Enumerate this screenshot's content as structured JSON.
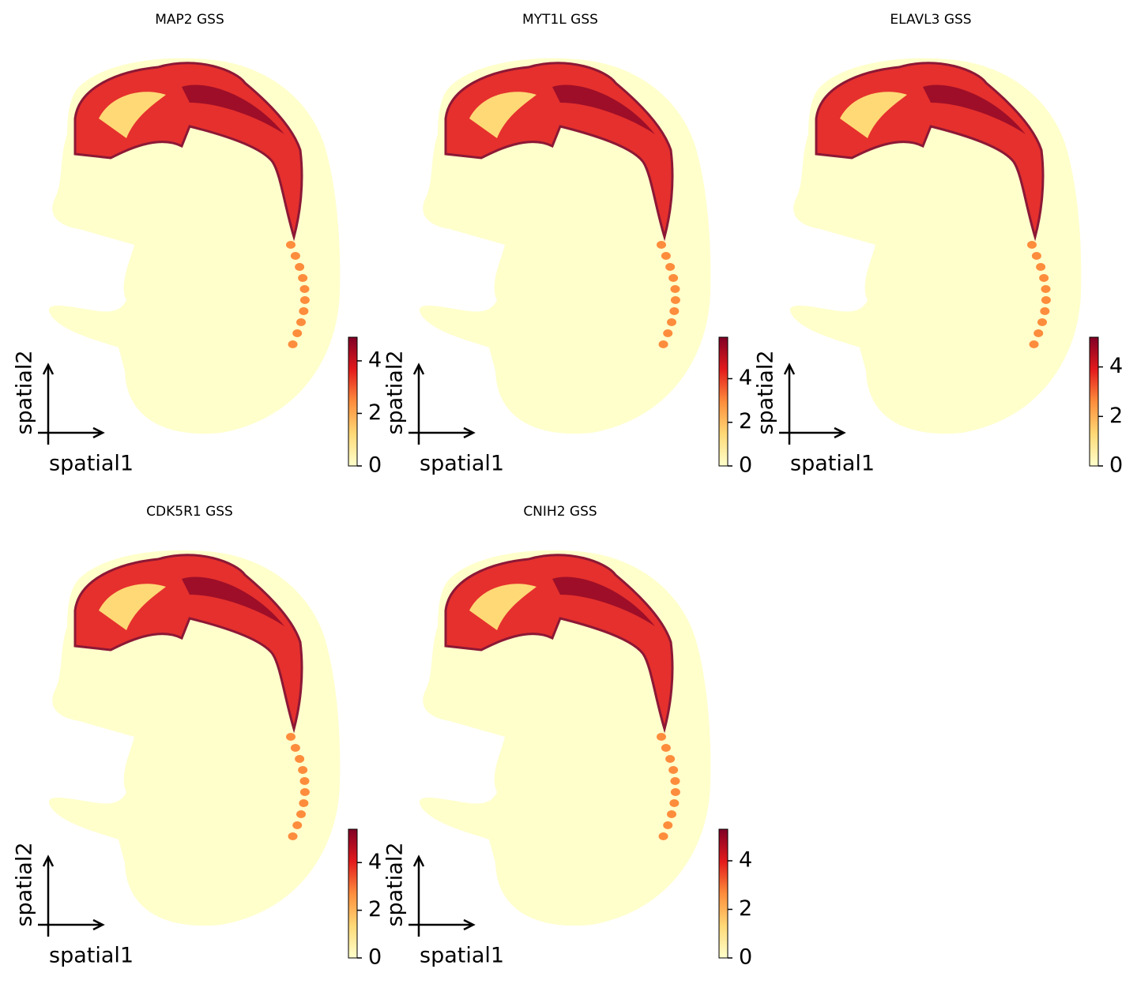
{
  "chart_data": [
    {
      "type": "spatial",
      "title": "MAP2 GSS",
      "xlabel": "spatial1",
      "ylabel": "spatial2",
      "clim": [
        0,
        4.9
      ],
      "cticks": [
        0,
        2,
        4
      ],
      "cmap": [
        "#ffffcc",
        "#fed976",
        "#fd8d3c",
        "#e31a1c",
        "#800026"
      ]
    },
    {
      "type": "spatial",
      "title": "MYT1L GSS",
      "xlabel": "spatial1",
      "ylabel": "spatial2",
      "clim": [
        0,
        5.9
      ],
      "cticks": [
        0,
        2,
        4
      ],
      "cmap": [
        "#ffffcc",
        "#fed976",
        "#fd8d3c",
        "#e31a1c",
        "#800026"
      ]
    },
    {
      "type": "spatial",
      "title": "ELAVL3 GSS",
      "xlabel": "spatial1",
      "ylabel": "spatial2",
      "clim": [
        0,
        5.2
      ],
      "cticks": [
        0,
        2,
        4
      ],
      "cmap": [
        "#ffffcc",
        "#fed976",
        "#fd8d3c",
        "#e31a1c",
        "#800026"
      ]
    },
    {
      "type": "spatial",
      "title": "CDK5R1 GSS",
      "xlabel": "spatial1",
      "ylabel": "spatial2",
      "clim": [
        0,
        5.4
      ],
      "cticks": [
        0,
        2,
        4
      ],
      "cmap": [
        "#ffffcc",
        "#fed976",
        "#fd8d3c",
        "#e31a1c",
        "#800026"
      ]
    },
    {
      "type": "spatial",
      "title": "CNIH2 GSS",
      "xlabel": "spatial1",
      "ylabel": "spatial2",
      "clim": [
        0,
        5.3
      ],
      "cticks": [
        0,
        2,
        4
      ],
      "cmap": [
        "#ffffcc",
        "#fed976",
        "#fd8d3c",
        "#e31a1c",
        "#800026"
      ]
    }
  ]
}
